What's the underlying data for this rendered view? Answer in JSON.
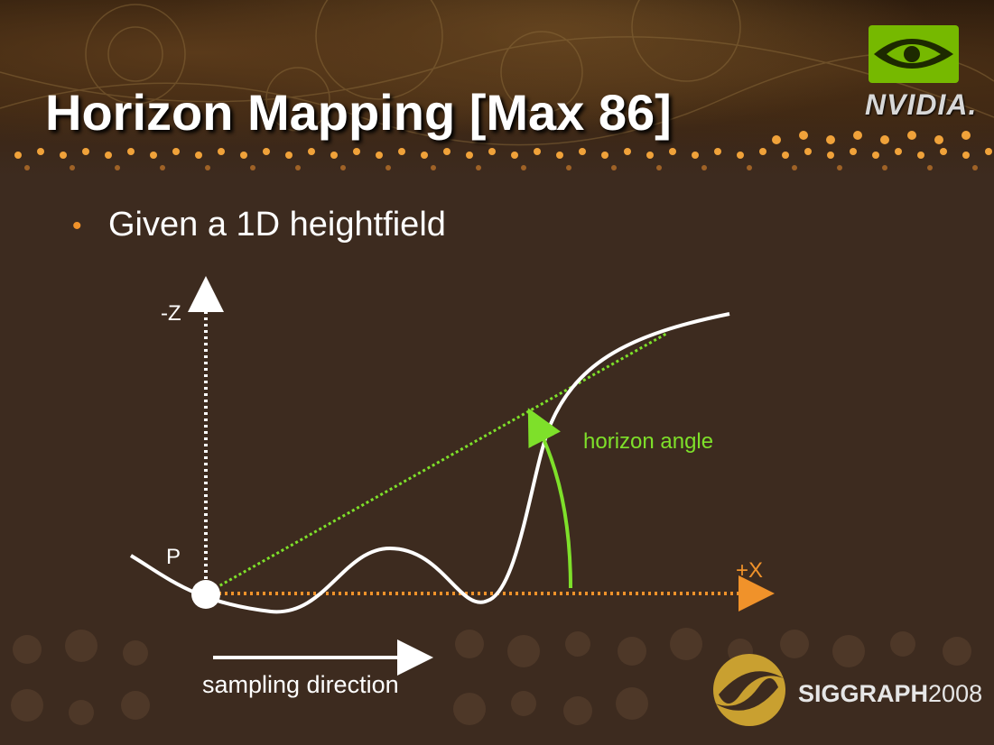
{
  "slide": {
    "title": "Horizon Mapping [Max 86]",
    "bullet": "Given a 1D heightfield"
  },
  "logos": {
    "nvidia": "NVIDIA.",
    "siggraph_bold": "SIGGRAPH",
    "siggraph_year": "2008"
  },
  "diagram": {
    "z_axis_label": "-Z",
    "x_axis_label": "+X",
    "point_label": "P",
    "angle_label": "horizon angle",
    "direction_label": "sampling direction"
  },
  "colors": {
    "background": "#3d2b1f",
    "accent_orange": "#f0922a",
    "horizon_green": "#7ee02a",
    "white": "#ffffff"
  }
}
